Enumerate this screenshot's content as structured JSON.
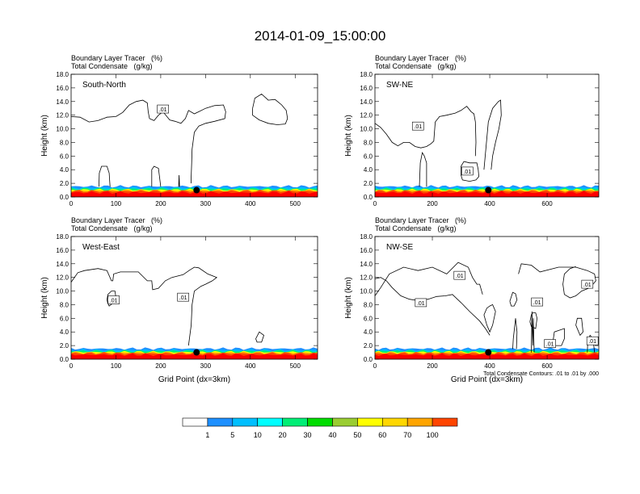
{
  "title": "2014-01-09_15:00:00",
  "colorbar": {
    "levels": [
      "1",
      "5",
      "10",
      "20",
      "30",
      "40",
      "50",
      "60",
      "70",
      "100"
    ],
    "colors": [
      "#ffffff",
      "#1e90ff",
      "#00bfff",
      "#00ffff",
      "#00ee76",
      "#00dd00",
      "#9acd32",
      "#ffff00",
      "#ffd700",
      "#ffa500",
      "#ff4500",
      "#ff0000"
    ]
  },
  "chart_data": [
    {
      "type": "contour",
      "label": "South-North",
      "header": [
        "Boundary Layer Tracer   (%)",
        "Total Condensate   (g/kg)"
      ],
      "ylabel": "Height (km)",
      "xlabel": "",
      "xlim": [
        0,
        550
      ],
      "ylim": [
        0,
        18
      ],
      "xticks": [
        "0",
        "100",
        "200",
        "300",
        "400",
        "500"
      ],
      "yticks": [
        "0.0",
        "2.0",
        "4.0",
        "6.0",
        "8.0",
        "10.0",
        "12.0",
        "14.0",
        "16.0",
        "18.0"
      ],
      "contour_labels": [
        ".01"
      ],
      "marker_x": 280
    },
    {
      "type": "contour",
      "label": "SW-NE",
      "header": [
        "Boundary Layer Tracer   (%)",
        "Total Condensate   (g/kg)"
      ],
      "ylabel": "Height (km)",
      "xlabel": "",
      "xlim": [
        0,
        780
      ],
      "ylim": [
        0,
        18
      ],
      "xticks": [
        "0",
        "200",
        "400",
        "600"
      ],
      "yticks": [
        "0.0",
        "2.0",
        "4.0",
        "6.0",
        "8.0",
        "10.0",
        "12.0",
        "14.0",
        "16.0",
        "18.0"
      ],
      "contour_labels": [
        ".01",
        ".01"
      ],
      "marker_x": 395
    },
    {
      "type": "contour",
      "label": "West-East",
      "header": [
        "Boundary Layer Tracer   (%)",
        "Total Condensate   (g/kg)"
      ],
      "ylabel": "Height (km)",
      "xlabel": "Grid Point (dx=3km)",
      "xlim": [
        0,
        550
      ],
      "ylim": [
        0,
        18
      ],
      "xticks": [
        "0",
        "100",
        "200",
        "300",
        "400",
        "500"
      ],
      "yticks": [
        "0.0",
        "2.0",
        "4.0",
        "6.0",
        "8.0",
        "10.0",
        "12.0",
        "14.0",
        "16.0",
        "18.0"
      ],
      "contour_labels": [
        ".01",
        ".01"
      ],
      "marker_x": 280
    },
    {
      "type": "contour",
      "label": "NW-SE",
      "header": [
        "Boundary Layer Tracer   (%)",
        "Total Condensate   (g/kg)"
      ],
      "ylabel": "Height (km)",
      "xlabel": "Grid Point (dx=3km)",
      "xlim": [
        0,
        780
      ],
      "ylim": [
        0,
        18
      ],
      "xticks": [
        "0",
        "200",
        "400",
        "600"
      ],
      "yticks": [
        "0.0",
        "2.0",
        "4.0",
        "6.0",
        "8.0",
        "10.0",
        "12.0",
        "14.0",
        "16.0",
        "18.0"
      ],
      "contour_labels": [
        ".01",
        ".01",
        ".01",
        ".01",
        ".01",
        ".01"
      ],
      "marker_x": 395,
      "footnote": "Total Condensate Contours: .01 to .01 by .000"
    }
  ]
}
